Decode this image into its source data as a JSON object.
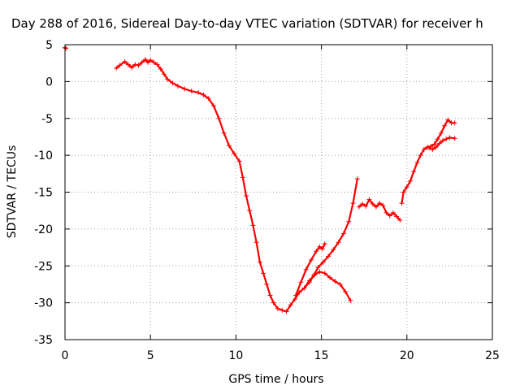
{
  "chart_data": {
    "type": "scatter",
    "title": "Day 288 of 2016, Sidereal Day-to-day VTEC variation (SDTVAR) for receiver h",
    "xlabel": "GPS time / hours",
    "ylabel": "SDTVAR / TECUs",
    "xlim": [
      0,
      25
    ],
    "ylim": [
      -35,
      5
    ],
    "x_ticks": [
      0,
      5,
      10,
      15,
      20,
      25
    ],
    "y_ticks": [
      -35,
      -30,
      -25,
      -20,
      -15,
      -10,
      -5,
      0,
      5
    ],
    "x_tick_labels": [
      "0",
      "5",
      "10",
      "15",
      "20",
      "25"
    ],
    "y_tick_labels": [
      "-35",
      "-30",
      "-25",
      "-20",
      "-15",
      "-10",
      "-5",
      "0",
      "5"
    ],
    "grid": true,
    "marker": "plus",
    "series_color": "#ff0000",
    "series": [
      {
        "points": [
          [
            0.0,
            4.6
          ],
          [
            0.05,
            4.5
          ]
        ]
      },
      {
        "points": [
          [
            3.0,
            1.8
          ],
          [
            3.2,
            2.2
          ],
          [
            3.5,
            2.7
          ],
          [
            3.7,
            2.3
          ],
          [
            3.9,
            1.9
          ],
          [
            4.1,
            2.3
          ],
          [
            4.3,
            2.2
          ],
          [
            4.5,
            2.6
          ],
          [
            4.7,
            3.0
          ],
          [
            4.85,
            2.6
          ],
          [
            5.0,
            2.9
          ],
          [
            5.2,
            2.6
          ],
          [
            5.4,
            2.3
          ],
          [
            5.6,
            1.7
          ],
          [
            5.8,
            1.0
          ],
          [
            6.0,
            0.3
          ],
          [
            6.3,
            -0.2
          ],
          [
            6.6,
            -0.6
          ],
          [
            7.0,
            -1.0
          ],
          [
            7.4,
            -1.3
          ],
          [
            7.8,
            -1.5
          ],
          [
            8.1,
            -1.8
          ],
          [
            8.4,
            -2.3
          ],
          [
            8.7,
            -3.3
          ],
          [
            9.0,
            -5.0
          ],
          [
            9.3,
            -7.0
          ],
          [
            9.6,
            -8.7
          ],
          [
            9.9,
            -9.8
          ],
          [
            10.2,
            -10.8
          ],
          [
            10.4,
            -13.0
          ],
          [
            10.6,
            -15.5
          ],
          [
            10.8,
            -17.5
          ],
          [
            11.0,
            -19.5
          ],
          [
            11.2,
            -21.8
          ],
          [
            11.4,
            -24.5
          ],
          [
            11.6,
            -26.0
          ],
          [
            11.8,
            -27.5
          ],
          [
            12.0,
            -29.0
          ],
          [
            12.2,
            -30.0
          ],
          [
            12.45,
            -30.8
          ],
          [
            12.7,
            -31.0
          ],
          [
            12.95,
            -31.2
          ],
          [
            13.2,
            -30.3
          ],
          [
            13.45,
            -29.5
          ],
          [
            13.7,
            -28.6
          ],
          [
            14.0,
            -28.0
          ],
          [
            14.3,
            -27.2
          ],
          [
            14.55,
            -26.3
          ],
          [
            14.8,
            -25.2
          ],
          [
            15.1,
            -24.5
          ],
          [
            15.4,
            -23.7
          ],
          [
            15.7,
            -22.8
          ],
          [
            16.0,
            -21.8
          ],
          [
            16.3,
            -20.6
          ],
          [
            16.6,
            -19.0
          ],
          [
            16.85,
            -16.5
          ],
          [
            17.1,
            -13.2
          ]
        ]
      },
      {
        "points": [
          [
            13.5,
            -29.0
          ],
          [
            13.8,
            -27.2
          ],
          [
            14.1,
            -25.5
          ],
          [
            14.4,
            -24.2
          ],
          [
            14.7,
            -23.0
          ],
          [
            14.9,
            -22.4
          ],
          [
            15.05,
            -22.7
          ],
          [
            15.2,
            -22.0
          ]
        ]
      },
      {
        "points": [
          [
            14.0,
            -28.0
          ],
          [
            14.3,
            -27.0
          ],
          [
            14.6,
            -26.2
          ],
          [
            14.9,
            -25.8
          ],
          [
            15.2,
            -26.0
          ],
          [
            15.5,
            -26.6
          ],
          [
            15.8,
            -27.1
          ],
          [
            16.1,
            -27.5
          ],
          [
            16.4,
            -28.5
          ],
          [
            16.7,
            -29.7
          ]
        ]
      },
      {
        "points": [
          [
            17.2,
            -17.0
          ],
          [
            17.4,
            -16.6
          ],
          [
            17.6,
            -16.9
          ],
          [
            17.8,
            -16.0
          ],
          [
            18.0,
            -16.6
          ],
          [
            18.2,
            -17.0
          ],
          [
            18.4,
            -16.5
          ],
          [
            18.6,
            -16.8
          ],
          [
            18.8,
            -17.8
          ],
          [
            19.0,
            -18.2
          ],
          [
            19.2,
            -17.8
          ],
          [
            19.4,
            -18.3
          ],
          [
            19.6,
            -18.8
          ]
        ]
      },
      {
        "points": [
          [
            19.7,
            -16.5
          ],
          [
            19.8,
            -15.0
          ],
          [
            20.0,
            -14.3
          ],
          [
            20.2,
            -13.5
          ],
          [
            20.4,
            -12.2
          ],
          [
            20.6,
            -11.0
          ],
          [
            20.8,
            -10.0
          ],
          [
            21.0,
            -9.2
          ],
          [
            21.2,
            -8.9
          ],
          [
            21.4,
            -8.8
          ],
          [
            21.6,
            -8.5
          ],
          [
            21.8,
            -7.8
          ],
          [
            22.0,
            -7.0
          ],
          [
            22.2,
            -6.0
          ],
          [
            22.4,
            -5.2
          ],
          [
            22.6,
            -5.6
          ],
          [
            22.8,
            -5.6
          ]
        ]
      },
      {
        "points": [
          [
            21.3,
            -9.0
          ],
          [
            21.5,
            -9.2
          ],
          [
            21.7,
            -8.9
          ],
          [
            21.9,
            -8.4
          ],
          [
            22.1,
            -8.0
          ],
          [
            22.3,
            -7.8
          ],
          [
            22.5,
            -7.6
          ],
          [
            22.8,
            -7.7
          ]
        ]
      }
    ]
  }
}
